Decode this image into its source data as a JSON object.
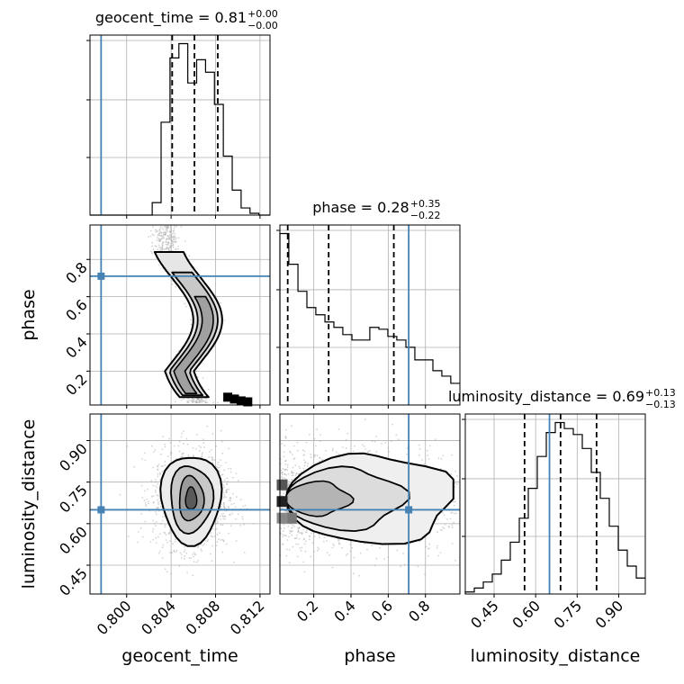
{
  "chart_data": {
    "type": "corner",
    "params": [
      "geocent_time",
      "phase",
      "luminosity_distance"
    ],
    "axis_labels": {
      "geocent_time": "geocent_time",
      "phase": "phase",
      "luminosity_distance": "luminosity_distance"
    },
    "titles": [
      {
        "param": "geocent_time",
        "text": "geocent_time = 0.81",
        "plus": "+0.00",
        "minus": "−0.00"
      },
      {
        "param": "phase",
        "text": "phase = 0.28",
        "plus": "+0.35",
        "minus": "−0.22"
      },
      {
        "param": "luminosity_distance",
        "text": "luminosity_distance = 0.69",
        "plus": "+0.13",
        "minus": "−0.13"
      }
    ],
    "ranges": {
      "geocent_time": [
        0.7967,
        0.8129
      ],
      "phase": [
        0.018,
        0.985
      ],
      "luminosity_distance": [
        0.346,
        0.996
      ]
    },
    "ticks": {
      "geocent_time": [
        "0.800",
        "0.804",
        "0.808",
        "0.812"
      ],
      "phase": [
        "0.2",
        "0.4",
        "0.6",
        "0.8"
      ],
      "luminosity_distance": [
        "0.45",
        "0.60",
        "0.75",
        "0.90"
      ]
    },
    "truth": {
      "geocent_time": 0.7977,
      "phase": 0.71,
      "luminosity_distance": 0.65
    },
    "quantiles": {
      "geocent_time": [
        0.8041,
        0.8061,
        0.8082
      ],
      "phase": [
        0.06,
        0.28,
        0.63
      ],
      "luminosity_distance": [
        0.56,
        0.69,
        0.82
      ]
    },
    "histograms": {
      "geocent_time": {
        "bin_edges": [
          0.7967,
          0.7975,
          0.7983,
          0.7991,
          0.7999,
          0.8007,
          0.8015,
          0.8023,
          0.8031,
          0.8039,
          0.8047,
          0.8055,
          0.8063,
          0.8071,
          0.8079,
          0.8087,
          0.8095,
          0.8103,
          0.8111,
          0.8119,
          0.8129
        ],
        "counts": [
          0,
          0,
          0,
          0,
          0,
          0,
          0,
          7,
          52,
          88,
          96,
          74,
          87,
          80,
          62,
          33,
          14,
          4,
          1,
          0
        ]
      },
      "phase": {
        "bin_edges": [
          0.018,
          0.066,
          0.115,
          0.163,
          0.211,
          0.26,
          0.308,
          0.356,
          0.405,
          0.453,
          0.501,
          0.55,
          0.598,
          0.646,
          0.695,
          0.743,
          0.791,
          0.84,
          0.888,
          0.936,
          0.985
        ],
        "counts": [
          95,
          78,
          63,
          54,
          50,
          46,
          43,
          39,
          36,
          36,
          43,
          42,
          38,
          36,
          32,
          25,
          25,
          19,
          16,
          12
        ]
      },
      "luminosity_distance": {
        "bin_edges": [
          0.346,
          0.3785,
          0.411,
          0.4435,
          0.476,
          0.5085,
          0.541,
          0.5735,
          0.606,
          0.6385,
          0.671,
          0.7035,
          0.736,
          0.7685,
          0.801,
          0.8335,
          0.866,
          0.8985,
          0.931,
          0.9635,
          0.996
        ],
        "counts": [
          1,
          3,
          6,
          10,
          17,
          26,
          38,
          53,
          69,
          81,
          86,
          83,
          80,
          73,
          61,
          48,
          34,
          22,
          14,
          8
        ]
      }
    },
    "colors": {
      "truth": "#4682b4",
      "line": "#000000",
      "grid": "#b0b0b0",
      "sample": "#a0a0a0"
    },
    "grid": true
  }
}
